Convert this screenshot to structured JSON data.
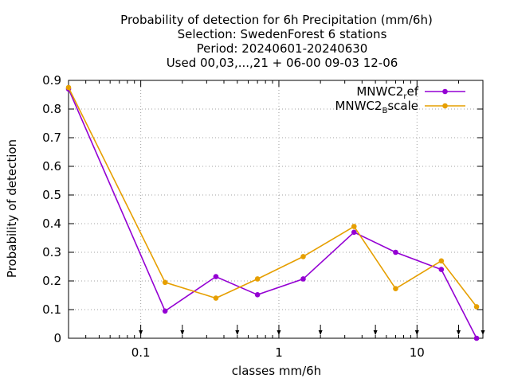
{
  "chart_data": {
    "type": "line",
    "title_lines": [
      "Probability of detection  for 6h Precipitation (mm/6h)",
      "Selection: SwedenForest      6 stations",
      "Period: 20240601-20240630",
      "Used 00,03,...,21 + 06-00 09-03 12-06"
    ],
    "xlabel": "classes mm/6h",
    "ylabel": "Probability of detection",
    "x_scale": "log",
    "xlim": [
      0.03,
      30
    ],
    "ylim": [
      0,
      0.9
    ],
    "grid": true,
    "legend_position": "top-right",
    "y_ticks": [
      {
        "value": 0,
        "label": "0"
      },
      {
        "value": 0.1,
        "label": "0.1"
      },
      {
        "value": 0.2,
        "label": "0.2"
      },
      {
        "value": 0.3,
        "label": "0.3"
      },
      {
        "value": 0.4,
        "label": "0.4"
      },
      {
        "value": 0.5,
        "label": "0.5"
      },
      {
        "value": 0.6,
        "label": "0.6"
      },
      {
        "value": 0.7,
        "label": "0.7"
      },
      {
        "value": 0.8,
        "label": "0.8"
      },
      {
        "value": 0.9,
        "label": "0.9"
      }
    ],
    "x_ticks": [
      {
        "value": 0.1,
        "label": "0.1"
      },
      {
        "value": 1,
        "label": "1"
      },
      {
        "value": 10,
        "label": "10"
      }
    ],
    "arrow_markers_x": [
      0.1,
      0.2,
      0.5,
      1,
      2,
      5,
      10,
      20,
      30
    ],
    "series": [
      {
        "name": "MNWC2_ref",
        "legend_main": "MNWC2",
        "legend_sub": "r",
        "legend_tail": "ef",
        "color": "#9400d3",
        "x": [
          0.03,
          0.15,
          0.35,
          0.7,
          1.5,
          3.5,
          7,
          15,
          27
        ],
        "y": [
          0.87,
          0.095,
          0.215,
          0.152,
          0.207,
          0.37,
          0.3,
          0.24,
          0.0
        ]
      },
      {
        "name": "MNWC2_Bscale",
        "legend_main": "MNWC2",
        "legend_sub": "B",
        "legend_tail": "scale",
        "color": "#e69f00",
        "x": [
          0.03,
          0.15,
          0.35,
          0.7,
          1.5,
          3.5,
          7,
          15,
          27
        ],
        "y": [
          0.875,
          0.195,
          0.14,
          0.207,
          0.285,
          0.39,
          0.173,
          0.27,
          0.11
        ]
      }
    ]
  }
}
